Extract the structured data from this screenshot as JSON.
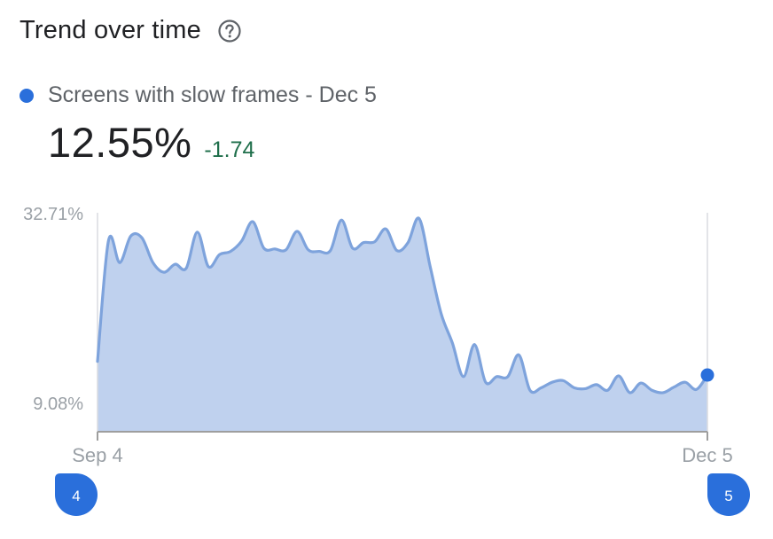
{
  "header": {
    "title": "Trend over time"
  },
  "icons": {
    "help": "help-circle-icon"
  },
  "legend": {
    "label": "Screens with slow frames - Dec 5",
    "color": "#2a6fdb"
  },
  "metric": {
    "value": "12.55%",
    "delta": "-1.74",
    "delta_color": "#1e6e4a"
  },
  "colors": {
    "line": "#7ea3dc",
    "area": "#bfd1ee",
    "marker": "#2a6fdb",
    "axis_text": "#9aa0a6"
  },
  "chart_data": {
    "type": "area",
    "series": [
      {
        "name": "Screens with slow frames",
        "values": [
          14.2,
          29.3,
          26.5,
          29.8,
          29.6,
          26.5,
          25.3,
          26.3,
          25.8,
          30.3,
          26.0,
          27.5,
          27.9,
          29.2,
          31.6,
          28.3,
          28.2,
          28.1,
          30.4,
          28.1,
          27.9,
          28.0,
          31.8,
          28.3,
          29.0,
          29.1,
          30.7,
          28.0,
          29.0,
          32.0,
          26.0,
          20.1,
          16.5,
          12.3,
          16.3,
          11.6,
          12.3,
          12.3,
          15.0,
          10.6,
          10.9,
          11.6,
          11.8,
          10.9,
          10.8,
          11.3,
          10.6,
          12.4,
          10.3,
          11.5,
          10.6,
          10.3,
          11.0,
          11.6,
          10.7,
          12.5
        ]
      }
    ],
    "x_labels": [
      "Sep 4",
      "Dec 5"
    ],
    "y_ticks": [
      "32.71%",
      "9.08%"
    ],
    "ylim": [
      9.08,
      32.71
    ],
    "slider": {
      "start_label": "4",
      "end_label": "5"
    },
    "grid": false
  }
}
